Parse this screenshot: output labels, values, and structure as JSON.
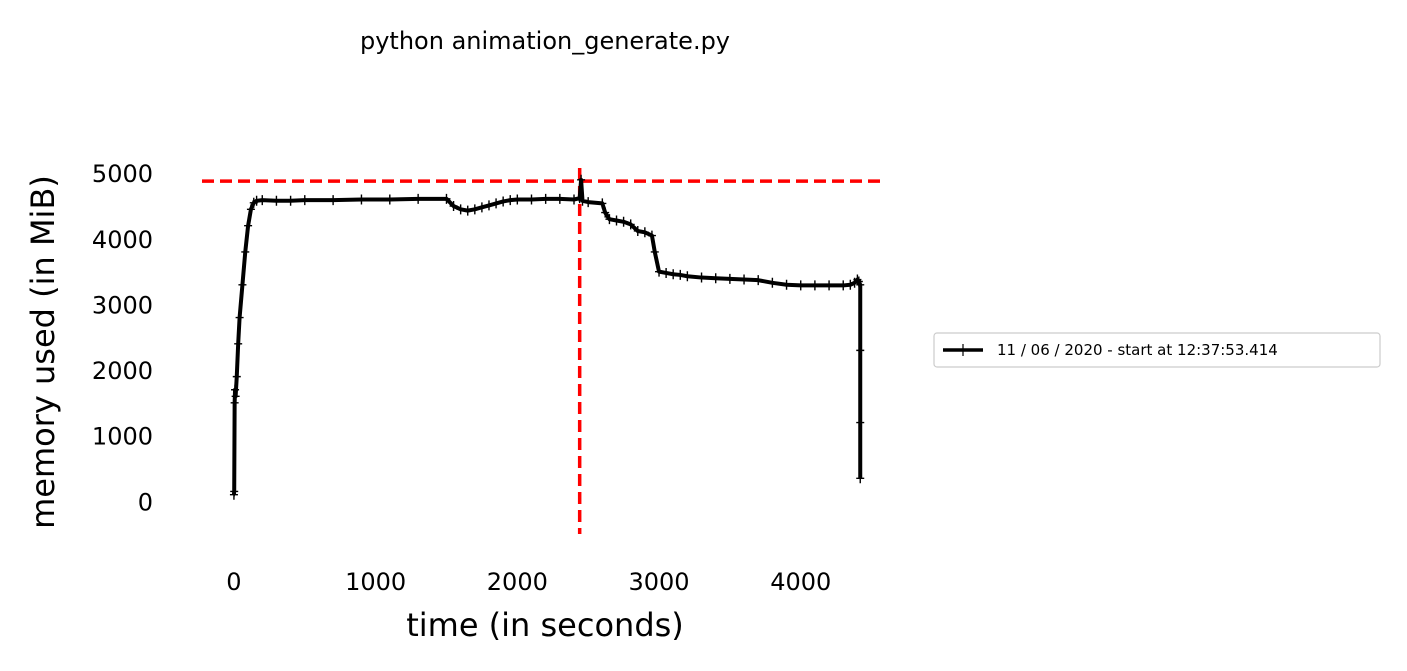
{
  "chart_data": {
    "type": "line",
    "title": "python animation_generate.py",
    "xlabel": "time (in seconds)",
    "ylabel": "memory used (in MiB)",
    "xlim": [
      -310,
      4630
    ],
    "ylim": [
      -560,
      5080
    ],
    "xticks": [
      0,
      1000,
      2000,
      3000,
      4000
    ],
    "yticks": [
      0,
      1000,
      2000,
      3000,
      4000,
      5000
    ],
    "grid": false,
    "legend_position": "right",
    "series": [
      {
        "name": "11 / 06 / 2020 - start at 12:37:53.414",
        "color": "#000000",
        "marker": "+",
        "x": [
          0,
          2,
          5,
          8,
          12,
          20,
          30,
          40,
          60,
          80,
          100,
          120,
          140,
          160,
          200,
          300,
          400,
          500,
          700,
          900,
          1100,
          1300,
          1500,
          1550,
          1600,
          1650,
          1700,
          1750,
          1800,
          1850,
          1900,
          1950,
          2000,
          2100,
          2200,
          2300,
          2400,
          2440,
          2450,
          2460,
          2500,
          2600,
          2620,
          2650,
          2700,
          2750,
          2800,
          2850,
          2900,
          2950,
          2970,
          3000,
          3050,
          3100,
          3150,
          3200,
          3300,
          3400,
          3500,
          3600,
          3700,
          3800,
          3900,
          4000,
          4100,
          4200,
          4300,
          4350,
          4380,
          4400,
          4410,
          4420,
          4420,
          4420,
          4420
        ],
        "y": [
          100,
          150,
          1500,
          1700,
          1600,
          1900,
          2400,
          2800,
          3300,
          3800,
          4200,
          4450,
          4550,
          4580,
          4590,
          4580,
          4580,
          4590,
          4590,
          4600,
          4600,
          4610,
          4610,
          4500,
          4450,
          4430,
          4450,
          4480,
          4510,
          4540,
          4570,
          4590,
          4600,
          4600,
          4610,
          4610,
          4600,
          4620,
          4900,
          4580,
          4560,
          4540,
          4400,
          4300,
          4280,
          4260,
          4220,
          4120,
          4100,
          4050,
          3800,
          3500,
          3480,
          3460,
          3450,
          3430,
          3410,
          3400,
          3390,
          3380,
          3370,
          3330,
          3300,
          3290,
          3290,
          3290,
          3290,
          3300,
          3330,
          3380,
          3350,
          3300,
          2300,
          1200,
          350
        ]
      }
    ],
    "reference_lines": [
      {
        "orientation": "horizontal",
        "value": 4880,
        "color": "#ff0000",
        "style": "dashed"
      },
      {
        "orientation": "vertical",
        "value": 2440,
        "color": "#ff0000",
        "style": "dashed"
      }
    ]
  }
}
